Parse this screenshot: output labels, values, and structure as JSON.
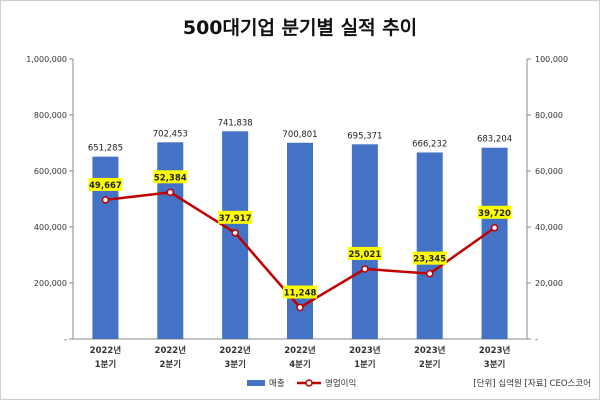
{
  "chart_data": {
    "type": "bar",
    "title": "500대기업 분기별 실적 추이",
    "categories": [
      [
        "2022년",
        "1분기"
      ],
      [
        "2022년",
        "2분기"
      ],
      [
        "2022년",
        "3분기"
      ],
      [
        "2022년",
        "4분기"
      ],
      [
        "2023년",
        "1분기"
      ],
      [
        "2023년",
        "2분기"
      ],
      [
        "2023년",
        "3분기"
      ]
    ],
    "series": [
      {
        "name": "매출",
        "type": "bar",
        "axis": "left",
        "color": "#4472C4",
        "values": [
          651285,
          702453,
          741838,
          700801,
          695371,
          666232,
          683204
        ],
        "labels": [
          "651,285",
          "702,453",
          "741,838",
          "700,801",
          "695,371",
          "666,232",
          "683,204"
        ]
      },
      {
        "name": "영업이익",
        "type": "line",
        "axis": "right",
        "color": "#C00000",
        "label_bg": "#FFFF00",
        "values": [
          49667,
          52384,
          37917,
          11248,
          25021,
          23345,
          39720
        ],
        "labels": [
          "49,667",
          "52,384",
          "37,917",
          "11,248",
          "25,021",
          "23,345",
          "39,720"
        ]
      }
    ],
    "y_left": {
      "range": [
        0,
        1000000
      ],
      "ticks": [
        0,
        200000,
        400000,
        600000,
        800000,
        1000000
      ],
      "tick_labels": [
        "-",
        "200,000",
        "400,000",
        "600,000",
        "800,000",
        "1,000,000"
      ]
    },
    "y_right": {
      "range": [
        0,
        100000
      ],
      "ticks": [
        0,
        20000,
        40000,
        60000,
        80000,
        100000
      ],
      "tick_labels": [
        "-",
        "20,000",
        "40,000",
        "60,000",
        "80,000",
        "100,000"
      ]
    },
    "grid": false,
    "legend_position": "bottom"
  },
  "note": "[단위] 십억원 [자료] CEO스코어"
}
